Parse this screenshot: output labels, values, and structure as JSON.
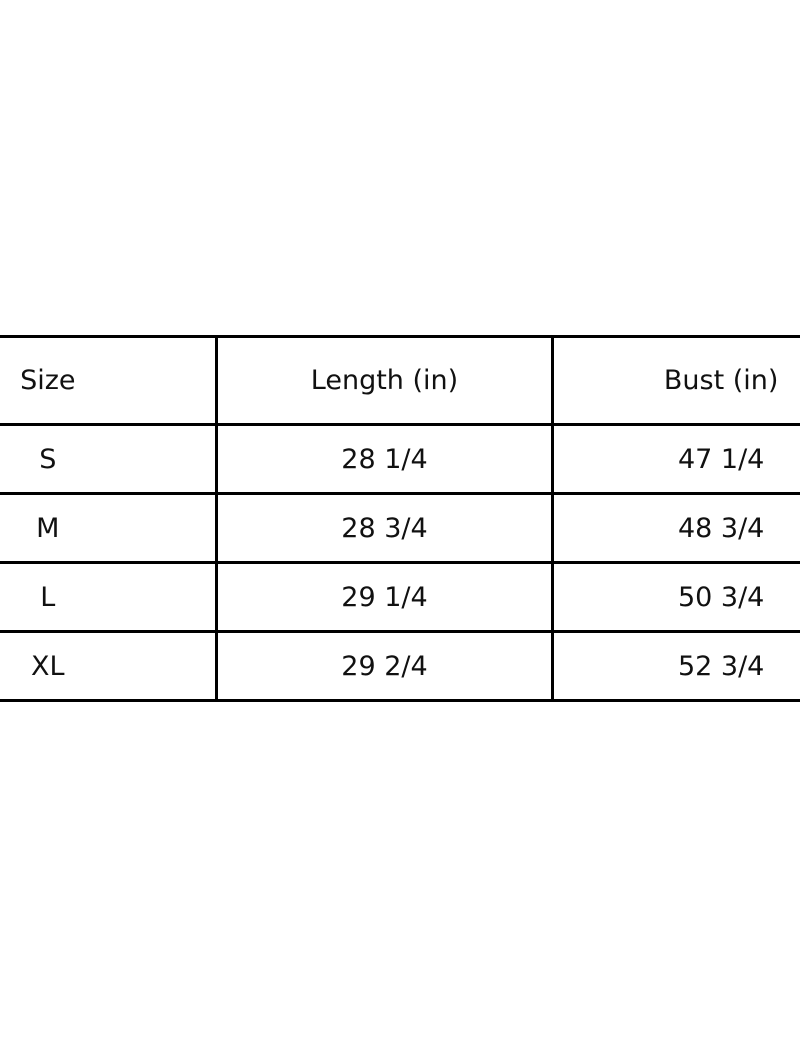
{
  "chart_data": {
    "type": "table",
    "columns": [
      "Size",
      "Length (in)",
      "Bust (in)"
    ],
    "rows": [
      [
        "S",
        "28 1/4",
        "47 1/4"
      ],
      [
        "M",
        "28 3/4",
        "48 3/4"
      ],
      [
        "L",
        "29 1/4",
        "50 3/4"
      ],
      [
        "XL",
        "29 2/4",
        "52 3/4"
      ]
    ],
    "layout": {
      "columns_equal_width": true,
      "cell_align": "center",
      "header_row_taller": true,
      "cropped_left_and_right": true,
      "grid_on": true
    }
  },
  "colors": {
    "background": "#ffffff",
    "border": "#000000",
    "text": "#111111"
  }
}
